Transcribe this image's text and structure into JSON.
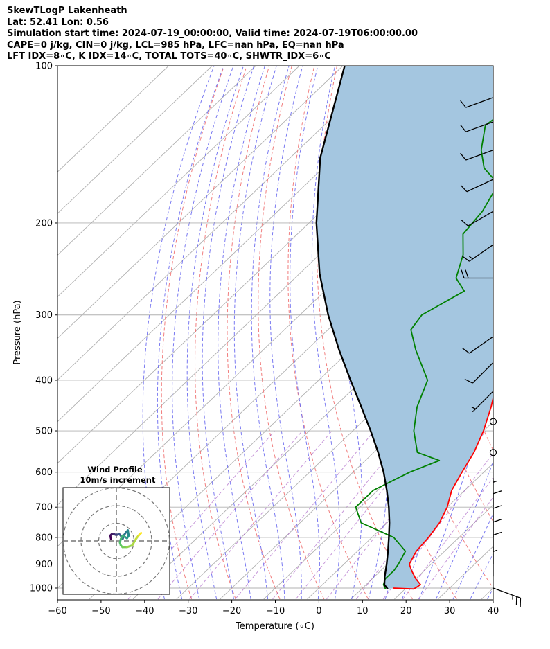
{
  "title_lines": [
    "SkewTLogP Lakenheath",
    "Lat: 52.41   Lon: 0.56",
    "Simulation start time: 2024-07-19_00:00:00, Valid time: 2024-07-19T06:00:00.00",
    "CAPE=0 j/kg, CIN=0 j/kg, LCL=985 hPa, LFC=nan hPa, EQ=nan hPa",
    "LFT IDX=8∘C, K IDX=14∘C, TOTAL TOTS=40∘C, SHWTR_IDX=6∘C"
  ],
  "chart_data": {
    "type": "line",
    "subtype": "skew-t log-p",
    "xlabel": "Temperature (∘C)",
    "ylabel": "Pressure (hPa)",
    "xlim": [
      -60,
      40
    ],
    "ylim": [
      1050,
      100
    ],
    "yscale": "log",
    "x_ticks": [
      -60,
      -50,
      -40,
      -30,
      -20,
      -10,
      0,
      10,
      20,
      30,
      40
    ],
    "x_tick_labels": [
      "−60",
      "−50",
      "−40",
      "−30",
      "−20",
      "−10",
      "0",
      "10",
      "20",
      "30",
      "40"
    ],
    "y_ticks": [
      1000,
      900,
      800,
      700,
      600,
      500,
      400,
      300,
      200,
      100
    ],
    "y_tick_labels": [
      "1000",
      "900",
      "800",
      "700",
      "600",
      "500",
      "400",
      "300",
      "200",
      "100"
    ],
    "grid": true,
    "colors": {
      "temperature": "#ff0000",
      "dewpoint": "#008000",
      "parcel": "#000000",
      "shade": "#a4c6e0",
      "dry_adiabats": "#f07070",
      "moist_adiabats": "#6a6af0",
      "mixing_ratio": "#a050c0",
      "isotherms": "#b0b0b0"
    },
    "series": [
      {
        "key": "temperature",
        "p": [
          1000,
          1004,
          985,
          960,
          925,
          900,
          850,
          800,
          750,
          700,
          650,
          600,
          550,
          500,
          450,
          400,
          350,
          300,
          285,
          260,
          235,
          210,
          185,
          170,
          158,
          146,
          130,
          115,
          100
        ],
        "t": [
          17,
          22,
          22.5,
          20,
          17,
          15,
          13.5,
          13,
          12,
          10,
          7,
          5,
          3,
          0,
          -4,
          -9,
          -15,
          -22,
          -24,
          -26,
          -31,
          -35,
          -37,
          -39,
          -37,
          -36,
          -37,
          -38,
          -40
        ]
      },
      {
        "key": "dewpoint",
        "p": [
          1004,
          985,
          960,
          925,
          900,
          850,
          800,
          750,
          700,
          650,
          600,
          570,
          550,
          500,
          450,
          400,
          350,
          320,
          300,
          270,
          255,
          230,
          210,
          190,
          175,
          165,
          157,
          145,
          130,
          115,
          100
        ],
        "t": [
          15.5,
          14,
          13,
          13,
          12.5,
          11,
          5,
          -6,
          -11,
          -11,
          -7,
          -3,
          -10,
          -16,
          -21,
          -25,
          -35,
          -41,
          -42,
          -38,
          -43,
          -47,
          -52,
          -53,
          -55,
          -58,
          -63,
          -68,
          -73,
          -71,
          -70
        ]
      },
      {
        "key": "parcel",
        "p": [
          1004,
          985,
          950,
          900,
          850,
          800,
          750,
          700,
          650,
          600,
          550,
          500,
          450,
          400,
          350,
          300,
          250,
          200,
          150,
          100
        ],
        "t": [
          16,
          14.2,
          12.3,
          9.8,
          7.0,
          3.9,
          0.5,
          -3.4,
          -7.9,
          -13.0,
          -19.0,
          -25.9,
          -33.8,
          -42.7,
          -52.6,
          -63.5,
          -75.4,
          -88.3,
          -103.1,
          -119.6
        ]
      }
    ],
    "wind_barbs": {
      "p": [
        1000,
        950,
        900,
        850,
        800,
        750,
        700,
        550,
        480,
        420,
        370,
        330,
        255,
        220,
        190,
        165,
        145,
        128,
        115
      ],
      "speed_kt": [
        25,
        5,
        10,
        10,
        10,
        10,
        5,
        0,
        0,
        5,
        10,
        10,
        20,
        15,
        10,
        10,
        10,
        10,
        10
      ],
      "dir_deg": [
        110,
        0,
        0,
        0,
        0,
        0,
        0,
        0,
        0,
        225,
        225,
        235,
        270,
        235,
        240,
        245,
        250,
        250,
        250
      ]
    },
    "inset": {
      "title": "Wind Profile",
      "subtitle": "10m/s increment",
      "rings_mps": [
        10,
        20,
        30
      ],
      "hodograph_u": [
        -3,
        -3.5,
        -2.5,
        -1.5,
        -0.5,
        0.5,
        1.5,
        2.5,
        3.5,
        4.5,
        5.5,
        6.5,
        7,
        6,
        4.5,
        3.5,
        2.5,
        2,
        2.5,
        3.5,
        6,
        9,
        11,
        12.5,
        13.5,
        14
      ],
      "hodograph_v": [
        1,
        3,
        4,
        4,
        3.5,
        3.5,
        4,
        3,
        1,
        3.5,
        5,
        6,
        3,
        1.5,
        2.5,
        3,
        1,
        -1,
        -2.5,
        -3.5,
        -3.5,
        -2.5,
        1,
        3,
        4,
        4.5
      ]
    }
  }
}
